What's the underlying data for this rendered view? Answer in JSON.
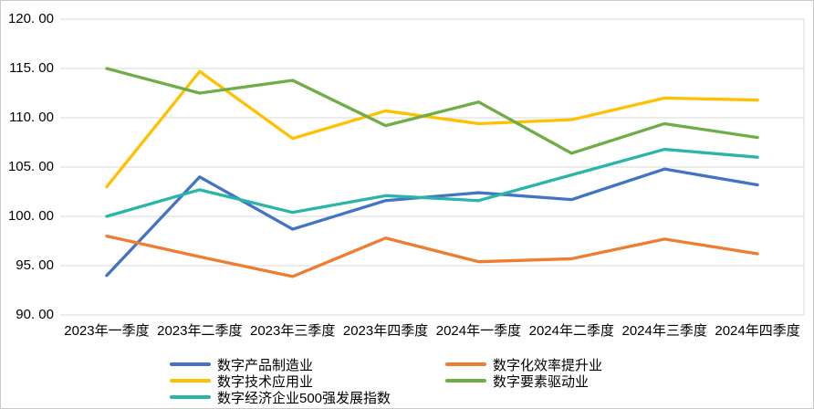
{
  "chart_data": {
    "type": "line",
    "title": "",
    "xlabel": "",
    "ylabel": "",
    "categories": [
      "2023年一季度",
      "2023年二季度",
      "2023年三季度",
      "2023年四季度",
      "2024年一季度",
      "2024年二季度",
      "2024年三季度",
      "2024年四季度"
    ],
    "series": [
      {
        "name": "数字产品制造业",
        "color": "#4472C4",
        "values": [
          94.0,
          104.0,
          98.7,
          101.6,
          102.4,
          101.7,
          104.8,
          103.2
        ]
      },
      {
        "name": "数字化效率提升业",
        "color": "#ED7D31",
        "values": [
          98.0,
          95.9,
          93.9,
          97.8,
          95.4,
          95.7,
          97.7,
          96.2
        ]
      },
      {
        "name": "数字技术应用业",
        "color": "#FFC000",
        "values": [
          103.0,
          114.7,
          107.9,
          110.7,
          109.4,
          109.8,
          112.0,
          111.8
        ]
      },
      {
        "name": "数字要素驱动业",
        "color": "#70AD47",
        "values": [
          115.0,
          112.5,
          113.8,
          109.2,
          111.6,
          106.4,
          109.4,
          108.0
        ]
      },
      {
        "name": "数字经济企业500强发展指数",
        "color": "#2AB5A9",
        "values": [
          100.0,
          102.7,
          100.4,
          102.1,
          101.6,
          104.2,
          106.8,
          106.0
        ]
      }
    ],
    "ylim": [
      90,
      120
    ],
    "ytick_step": 5,
    "ytick_labels": [
      "90. 00",
      "95. 00",
      "100. 00",
      "105. 00",
      "110. 00",
      "115. 00",
      "120. 00"
    ],
    "grid": "horizontal",
    "legend_position": "bottom",
    "legend_rows": [
      [
        0,
        1
      ],
      [
        2,
        3
      ],
      [
        4
      ]
    ]
  },
  "colors": {
    "gridline": "#D9D9D9",
    "plot_right_border": "#D9D9D9",
    "text": "#000000",
    "background": "#FFFFFF"
  }
}
